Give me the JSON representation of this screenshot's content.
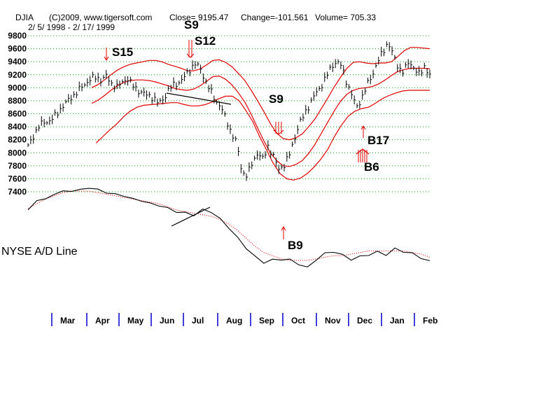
{
  "header": {
    "symbol": "DJIA",
    "copyright": "(C)2009, www.tigersoft.com",
    "close": "Close= 9195.47",
    "change": "Change=-101.561",
    "volume": "Volume= 705.33",
    "range": "2/ 5/ 1998 - 2/ 17/ 1999"
  },
  "ad_label": "NYSE A/D Line",
  "colors": {
    "price": "#000000",
    "band": "#e00000",
    "signal": "#e00000",
    "grid": "#00a000",
    "axis": "#0000cc",
    "ad_ma": "#e00000"
  },
  "chart_data": {
    "type": "line",
    "ylim": [
      7400,
      9800
    ],
    "yticks": [
      "9800",
      "9600",
      "9400",
      "9200",
      "9000",
      "8800",
      "8600",
      "8400",
      "8200",
      "8000",
      "7800",
      "7600",
      "7400"
    ],
    "ytick_values": [
      9800,
      9600,
      9400,
      9200,
      9000,
      8800,
      8600,
      8400,
      8200,
      8000,
      7800,
      7600,
      7400
    ],
    "months": [
      "Mar",
      "Apr",
      "May",
      "Jun",
      "Jul",
      "Aug",
      "Sep",
      "Oct",
      "Nov",
      "Dec",
      "Jan",
      "Feb"
    ],
    "price_close": [
      8100,
      8250,
      8400,
      8470,
      8480,
      8550,
      8650,
      8750,
      8830,
      8900,
      8990,
      9060,
      9140,
      9160,
      9120,
      9180,
      9060,
      9010,
      9080,
      9150,
      9040,
      8960,
      8920,
      8880,
      8850,
      8760,
      8830,
      8980,
      9050,
      9080,
      9170,
      9280,
      9370,
      9300,
      9100,
      8950,
      8800,
      8700,
      8500,
      8300,
      8150,
      7700,
      7650,
      7850,
      8000,
      7900,
      8100,
      7950,
      7750,
      7800,
      7950,
      8200,
      8450,
      8600,
      8750,
      8900,
      9000,
      9150,
      9300,
      9400,
      9350,
      9100,
      8900,
      8700,
      8850,
      9050,
      9200,
      9400,
      9550,
      9700,
      9500,
      9300,
      9250,
      9400,
      9300,
      9200,
      9330,
      9195
    ],
    "upper_band": [
      null,
      null,
      null,
      null,
      null,
      null,
      null,
      null,
      null,
      null,
      9000,
      9050,
      9120,
      9200,
      9270,
      9320,
      9360,
      9380,
      9400,
      9420,
      9420,
      9400,
      9360,
      9330,
      9300,
      9260,
      9260,
      9290,
      9350,
      9420,
      9430,
      9390,
      9320,
      9220,
      9110,
      8960,
      8800,
      8630,
      8450,
      8300,
      8220,
      8200,
      8230,
      8290,
      8400,
      8520,
      8680,
      8840,
      9010,
      9160,
      9300,
      9390,
      9400,
      9380,
      9370,
      9380,
      9380,
      9400,
      9480,
      9570,
      9620,
      9620,
      9610,
      9600
    ],
    "mid_band": [
      null,
      null,
      null,
      null,
      null,
      null,
      null,
      null,
      null,
      null,
      8760,
      8810,
      8880,
      8960,
      9030,
      9080,
      9110,
      9120,
      9120,
      9110,
      9090,
      9060,
      9030,
      8990,
      8970,
      8960,
      8980,
      9030,
      9100,
      9170,
      9180,
      9130,
      9040,
      8920,
      8780,
      8590,
      8380,
      8180,
      8000,
      7880,
      7800,
      7790,
      7820,
      7880,
      7990,
      8130,
      8300,
      8470,
      8640,
      8790,
      8900,
      8960,
      8990,
      9000,
      9020,
      9060,
      9120,
      9190,
      9250,
      9280,
      9300,
      9300,
      9300,
      9290
    ],
    "lower_band": [
      null,
      null,
      null,
      null,
      null,
      null,
      null,
      null,
      null,
      null,
      8150,
      8250,
      8350,
      8440,
      8550,
      8640,
      8700,
      8730,
      8740,
      8750,
      8760,
      8770,
      8770,
      8740,
      8720,
      8720,
      8740,
      8780,
      8830,
      8870,
      8870,
      8800,
      8650,
      8480,
      8250,
      8050,
      7840,
      7680,
      7600,
      7580,
      7610,
      7680,
      7780,
      7900,
      8050,
      8250,
      8420,
      8560,
      8640,
      8680,
      8700,
      8760,
      8830,
      8880,
      8920,
      8950,
      8960,
      8960,
      8960,
      8960
    ],
    "ad_line": [
      0.0,
      0.3,
      0.35,
      0.5,
      0.6,
      0.6,
      0.65,
      0.7,
      0.65,
      0.55,
      0.5,
      0.45,
      0.35,
      0.3,
      0.2,
      0.15,
      0.05,
      -0.05,
      -0.1,
      -0.15,
      0.0,
      -0.05,
      -0.3,
      -0.55,
      -0.9,
      -1.2,
      -1.5,
      -1.65,
      -1.6,
      -1.55,
      -1.6,
      -1.7,
      -1.85,
      -1.55,
      -1.4,
      -1.3,
      -1.45,
      -1.55,
      -1.5,
      -1.4,
      -1.35,
      -1.4,
      -1.25,
      -1.3,
      -1.4,
      -1.5,
      -1.65
    ],
    "ad_ma": [
      0.05,
      0.2,
      0.35,
      0.45,
      0.55,
      0.6,
      0.6,
      0.6,
      0.55,
      0.5,
      0.45,
      0.4,
      0.35,
      0.3,
      0.25,
      0.2,
      0.1,
      0.0,
      -0.05,
      -0.1,
      -0.15,
      -0.2,
      -0.3,
      -0.45,
      -0.65,
      -0.9,
      -1.15,
      -1.35,
      -1.45,
      -1.55,
      -1.6,
      -1.6,
      -1.6,
      -1.55,
      -1.5,
      -1.45,
      -1.45,
      -1.4,
      -1.35,
      -1.3,
      -1.3,
      -1.3,
      -1.3,
      -1.3,
      -1.35,
      -1.4,
      -1.5
    ],
    "signals": [
      {
        "label": "S15",
        "type": "sell"
      },
      {
        "label": "S9",
        "type": "sell"
      },
      {
        "label": "S12",
        "type": "sell"
      },
      {
        "label": "S9",
        "type": "sell"
      },
      {
        "label": "B17",
        "type": "buy"
      },
      {
        "label": "B6",
        "type": "buy"
      },
      {
        "label": "B9",
        "type": "buy"
      }
    ]
  }
}
